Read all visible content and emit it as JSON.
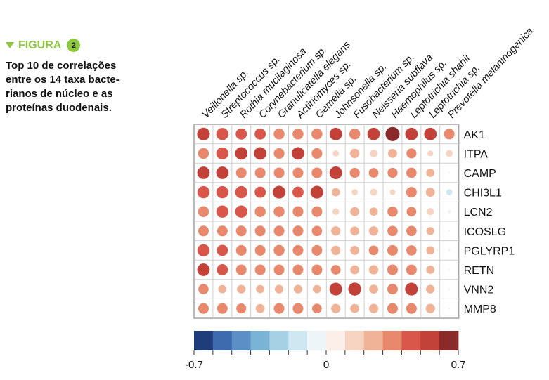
{
  "figure": {
    "label": "FIGURA",
    "number": "2",
    "caption_lines": [
      "Top 10 de correlações",
      "entre os 14 taxa bacte-",
      "rianos de núcleo e as",
      "proteínas duodenais."
    ]
  },
  "colors": {
    "accent": "#8dc63f",
    "scale": [
      "#1f3d7a",
      "#3e6bad",
      "#5b8fc6",
      "#7ab3d6",
      "#a6d0e4",
      "#cfe7f1",
      "#eef5f9",
      "#fcefe9",
      "#f7d4c2",
      "#f0b397",
      "#e8896d",
      "#d9564a",
      "#c24138",
      "#8b2a2a"
    ]
  },
  "chart_data": {
    "type": "heatmap",
    "title": "",
    "columns": [
      "Veillonella sp.",
      "Streptococcus sp.",
      "Rothia mucilaginosa",
      "Corynebacterium sp.",
      "Granulicatella elegans",
      "Actinomyces sp.",
      "Gemella sp.",
      "Johnsonella sp.",
      "Fusobacterium sp.",
      "Neisseria subflava",
      "Haemophilus sp.",
      "Leptotrichia shahii",
      "Leptotrichia sp.",
      "Prevotella melaninogenica"
    ],
    "rows": [
      "AK1",
      "ITPA",
      "CAMP",
      "CHI3L1",
      "LCN2",
      "ICOSLG",
      "PGLYRP1",
      "RETN",
      "VNN2",
      "MMP8"
    ],
    "values": [
      [
        0.52,
        0.48,
        0.4,
        0.4,
        0.38,
        0.38,
        0.38,
        0.5,
        0.38,
        0.5,
        0.64,
        0.5,
        0.5,
        0.36
      ],
      [
        0.38,
        0.48,
        0.5,
        0.5,
        0.36,
        0.5,
        0.36,
        0.12,
        0.28,
        0.18,
        0.26,
        0.32,
        0.1,
        0.15
      ],
      [
        0.5,
        0.5,
        0.36,
        0.36,
        0.36,
        0.36,
        0.36,
        0.52,
        0.32,
        0.3,
        0.32,
        0.34,
        0.22,
        0.0
      ],
      [
        0.48,
        0.48,
        0.48,
        0.4,
        0.52,
        0.4,
        0.52,
        0.22,
        0.12,
        0.16,
        0.1,
        0.36,
        0.26,
        -0.12
      ],
      [
        0.38,
        0.48,
        0.48,
        0.38,
        0.38,
        0.36,
        0.36,
        0.14,
        0.26,
        0.22,
        0.34,
        0.3,
        0.16,
        0.04
      ],
      [
        0.36,
        0.36,
        0.36,
        0.36,
        0.36,
        0.36,
        0.34,
        0.28,
        0.26,
        0.28,
        0.34,
        0.34,
        0.2,
        0.01
      ],
      [
        0.48,
        0.4,
        0.36,
        0.36,
        0.38,
        0.36,
        0.36,
        0.28,
        0.26,
        0.3,
        0.36,
        0.34,
        0.22,
        -0.02
      ],
      [
        0.5,
        0.4,
        0.36,
        0.36,
        0.36,
        0.36,
        0.36,
        0.3,
        0.26,
        0.28,
        0.36,
        0.36,
        0.22,
        -0.01
      ],
      [
        0.34,
        0.22,
        0.24,
        0.22,
        0.24,
        0.24,
        0.22,
        0.52,
        0.54,
        0.26,
        0.36,
        0.52,
        0.24,
        0.01
      ],
      [
        0.36,
        0.36,
        0.32,
        0.26,
        0.36,
        0.36,
        0.3,
        0.28,
        0.26,
        0.28,
        0.36,
        0.36,
        0.28,
        0.01
      ]
    ],
    "colorbar": {
      "range": [
        -0.7,
        0.7
      ],
      "tick_labels": [
        "-0.7",
        "0",
        "0.7"
      ],
      "tick_values": [
        -0.7,
        0,
        0.7
      ],
      "bins": 14
    }
  }
}
